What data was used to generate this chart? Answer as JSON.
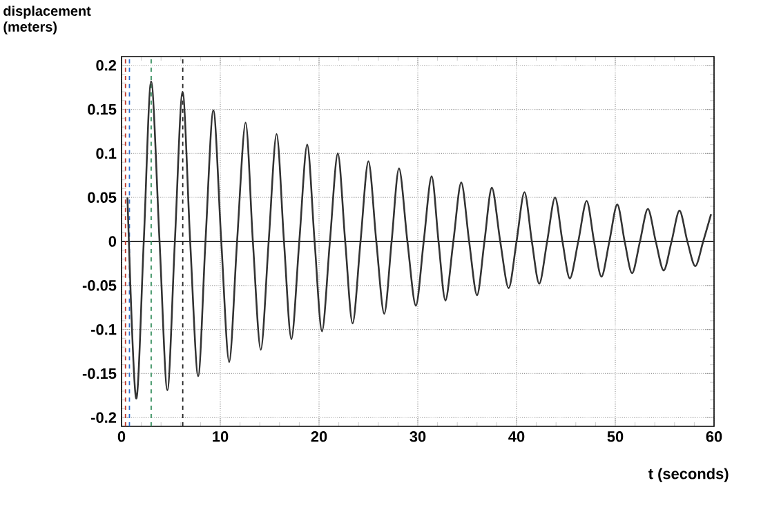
{
  "chart_data": {
    "type": "line",
    "xlabel": "t (seconds)",
    "ylabel": "displacement (meters)",
    "xlim": [
      0,
      60
    ],
    "ylim": [
      -0.21,
      0.21
    ],
    "xticks": [
      0,
      10,
      20,
      30,
      40,
      50,
      60
    ],
    "yticks": [
      -0.2,
      -0.15,
      -0.1,
      -0.05,
      0,
      0.05,
      0.1,
      0.15,
      0.2
    ],
    "grid": true,
    "series": [
      {
        "color": "#333333",
        "x": [
          0.6,
          1.47,
          2.25,
          3.0,
          3.85,
          4.64,
          5.4,
          6.18,
          6.95,
          7.76,
          8.5,
          9.3,
          10.1,
          10.9,
          11.7,
          12.56,
          13.3,
          14.1,
          14.9,
          15.7,
          16.45,
          17.2,
          18.0,
          18.8,
          19.55,
          20.3,
          21.1,
          21.9,
          22.65,
          23.4,
          24.2,
          25.0,
          25.8,
          26.6,
          27.35,
          28.1,
          28.95,
          29.8,
          30.6,
          31.4,
          32.1,
          32.8,
          33.6,
          34.4,
          35.2,
          36.0,
          36.75,
          37.5,
          38.35,
          39.2,
          40.0,
          40.8,
          41.55,
          42.3,
          43.1,
          43.9,
          44.65,
          45.4,
          46.25,
          47.1,
          47.85,
          48.6,
          49.4,
          50.2,
          50.95,
          51.7,
          52.5,
          53.3,
          54.1,
          54.9,
          55.7,
          56.5,
          57.3,
          58.1,
          58.9,
          59.7
        ],
        "values": [
          0.05,
          -0.178,
          0,
          0.182,
          0,
          -0.169,
          0,
          0.17,
          0,
          -0.153,
          0,
          0.149,
          0,
          -0.137,
          0,
          0.135,
          0,
          -0.123,
          0,
          0.122,
          0,
          -0.111,
          0,
          0.11,
          0,
          -0.102,
          0,
          0.1,
          0,
          -0.093,
          0,
          0.091,
          0,
          -0.082,
          0,
          0.083,
          0,
          -0.073,
          0,
          0.074,
          0,
          -0.067,
          0,
          0.067,
          0,
          -0.061,
          0,
          0.061,
          0,
          -0.053,
          0,
          0.056,
          0,
          -0.048,
          0,
          0.05,
          0,
          -0.042,
          0,
          0.046,
          0,
          -0.04,
          0,
          0.042,
          0,
          -0.036,
          0,
          0.037,
          0,
          -0.033,
          0,
          0.035,
          0,
          -0.028,
          0,
          0.031
        ]
      }
    ],
    "ref_lines": [
      {
        "axis": "y",
        "value": 0,
        "color": "#333333",
        "line_style": "solid"
      },
      {
        "axis": "x",
        "value": 0.4,
        "color": "#c0392b",
        "line_style": "dashed"
      },
      {
        "axis": "x",
        "value": 0.8,
        "color": "#2e6fd1",
        "line_style": "dashed"
      },
      {
        "axis": "x",
        "value": 3.0,
        "color": "#2e8b57",
        "line_style": "dashed"
      },
      {
        "axis": "x",
        "value": 6.2,
        "color": "#222222",
        "line_style": "dashed"
      }
    ]
  }
}
